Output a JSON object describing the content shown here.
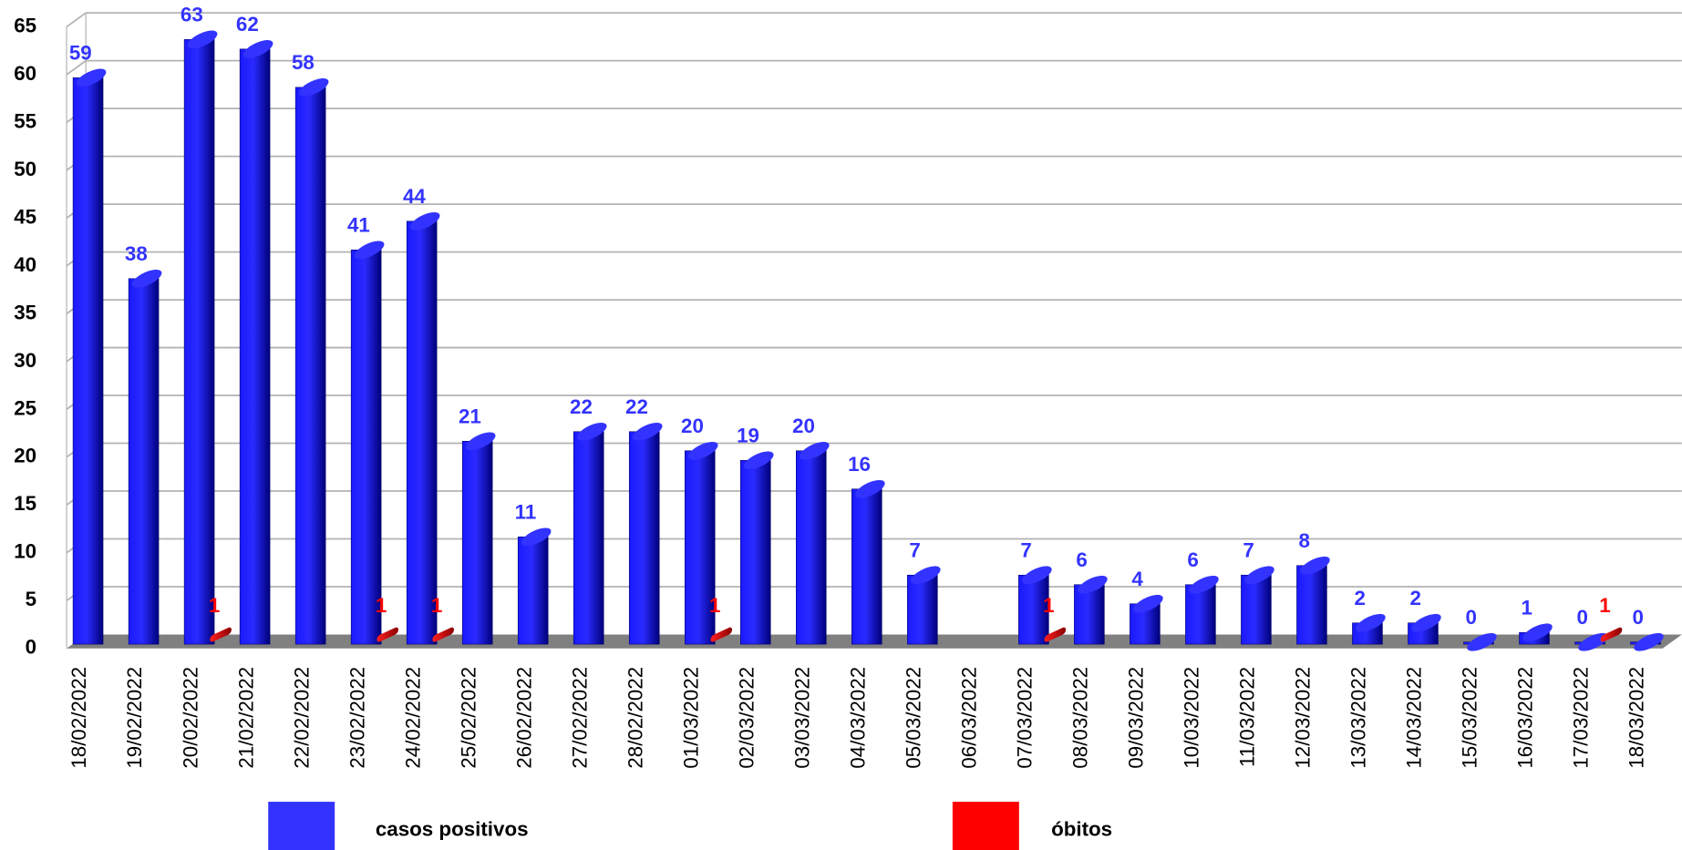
{
  "chart_data": {
    "type": "bar",
    "categories": [
      "18/02/2022",
      "19/02/2022",
      "20/02/2022",
      "21/02/2022",
      "22/02/2022",
      "23/02/2022",
      "24/02/2022",
      "25/02/2022",
      "26/02/2022",
      "27/02/2022",
      "28/02/2022",
      "01/03/2022",
      "02/03/2022",
      "03/03/2022",
      "04/03/2022",
      "05/03/2022",
      "06/03/2022",
      "07/03/2022",
      "08/03/2022",
      "09/03/2022",
      "10/03/2022",
      "11/03/2022",
      "12/03/2022",
      "13/03/2022",
      "14/03/2022",
      "15/03/2022",
      "16/03/2022",
      "17/03/2022",
      "18/03/2022"
    ],
    "series": [
      {
        "name": "casos positivos",
        "color": "#3333ff",
        "values": [
          59,
          38,
          63,
          62,
          58,
          41,
          44,
          21,
          11,
          22,
          22,
          20,
          19,
          20,
          16,
          7,
          null,
          7,
          6,
          4,
          6,
          7,
          8,
          2,
          2,
          0,
          1,
          0,
          0
        ]
      },
      {
        "name": "óbitos",
        "color": "#ff0000",
        "values": [
          null,
          null,
          1,
          null,
          null,
          1,
          1,
          null,
          null,
          null,
          null,
          1,
          null,
          null,
          null,
          null,
          null,
          1,
          null,
          null,
          null,
          null,
          null,
          null,
          null,
          null,
          null,
          1,
          null
        ]
      }
    ],
    "ylim": [
      0,
      65
    ],
    "yticks": [
      0,
      5,
      10,
      15,
      20,
      25,
      30,
      35,
      40,
      45,
      50,
      55,
      60,
      65
    ],
    "grid": true
  }
}
